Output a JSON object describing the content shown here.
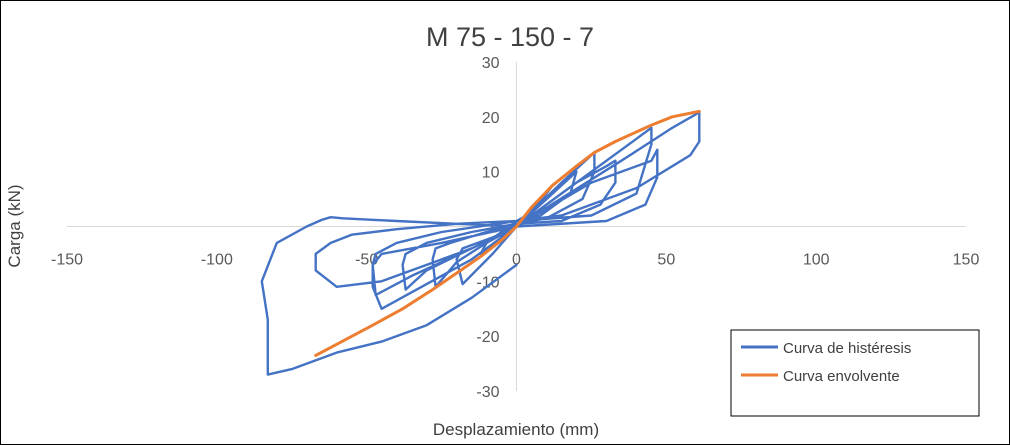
{
  "chart_data": {
    "type": "line",
    "title": "M 75 - 150 - 7",
    "xlabel": "Desplazamiento (mm)",
    "ylabel": "Carga (kN)",
    "xlim": [
      -150,
      150
    ],
    "ylim": [
      -30,
      30
    ],
    "x_ticks": [
      -150,
      -100,
      -50,
      0,
      50,
      100,
      150
    ],
    "y_ticks": [
      -30,
      -20,
      -10,
      0,
      10,
      20,
      30
    ],
    "grid": false,
    "legend_position": "bottom-right",
    "series": [
      {
        "name": "Curva de histéresis",
        "color": "#4472C4",
        "x": [
          0,
          5,
          10,
          12,
          5,
          0,
          -5,
          -10,
          -12,
          -5,
          0,
          10,
          18,
          20,
          18,
          8,
          0,
          -8,
          -18,
          -20,
          -18,
          -8,
          0,
          15,
          23,
          26,
          26,
          22,
          10,
          0,
          -10,
          -22,
          -27,
          -28,
          -27,
          -20,
          -10,
          0,
          20,
          30,
          33,
          33,
          28,
          15,
          0,
          -15,
          -30,
          -37,
          -38,
          -37,
          -30,
          -15,
          0,
          25,
          40,
          45,
          45,
          40,
          25,
          0,
          -25,
          -40,
          -47,
          -48,
          -47,
          -35,
          -15,
          0,
          25,
          40,
          45,
          47,
          47,
          43,
          30,
          0,
          -25,
          -45,
          -48,
          -48,
          -45,
          -35,
          -15,
          0,
          35,
          52,
          60,
          61,
          61,
          58,
          40,
          15,
          0,
          -20,
          -40,
          -55,
          -62,
          -67,
          -67,
          -60,
          -45,
          -30,
          -15,
          0,
          -20,
          -40,
          -58,
          -62,
          -65,
          -70,
          -80,
          -85,
          -83,
          -83,
          -75,
          -60,
          -45,
          -30,
          -15,
          0
        ],
        "y": [
          0,
          3,
          6,
          7.5,
          2.5,
          1,
          -1,
          -3,
          -5,
          -2,
          0,
          5,
          9,
          10,
          6,
          2,
          0,
          -2,
          -4,
          -6,
          -10.5,
          -5,
          0,
          8,
          12,
          13.5,
          10,
          5,
          1.5,
          0.5,
          -1,
          -3,
          -4,
          -6,
          -11,
          -6.5,
          -3,
          0,
          8,
          11,
          12,
          8,
          4,
          1,
          0.5,
          -1,
          -3,
          -5,
          -7,
          -11.5,
          -8,
          -4,
          0,
          10,
          16,
          18,
          15,
          6,
          2,
          1,
          -1,
          -3,
          -5,
          -7,
          -12.5,
          -9,
          -4,
          0,
          8,
          11,
          12,
          14,
          9,
          4,
          1,
          0,
          -3,
          -5,
          -7,
          -11,
          -15,
          -12,
          -6,
          0,
          12,
          18,
          20.5,
          21,
          15.5,
          13,
          7,
          2,
          1,
          0.5,
          -0.5,
          -1.5,
          -3,
          -5,
          -8,
          -11,
          -10,
          -7,
          -4,
          0,
          0.5,
          1,
          1.5,
          1.7,
          1.2,
          0,
          -3,
          -10,
          -17,
          -27,
          -26,
          -23,
          -21,
          -18,
          -13,
          -7
        ]
      },
      {
        "name": "Curva envolvente",
        "color": "#ED7D31",
        "x": [
          -67,
          -48,
          -38,
          -28,
          -20,
          -12,
          -5,
          0,
          5,
          12,
          20,
          26,
          33,
          45,
          52,
          61
        ],
        "y": [
          -23.5,
          -18,
          -15,
          -11.5,
          -8.5,
          -5.5,
          -2.5,
          0,
          3.5,
          7.5,
          11,
          13.5,
          15.5,
          18.5,
          20,
          21
        ]
      }
    ]
  }
}
